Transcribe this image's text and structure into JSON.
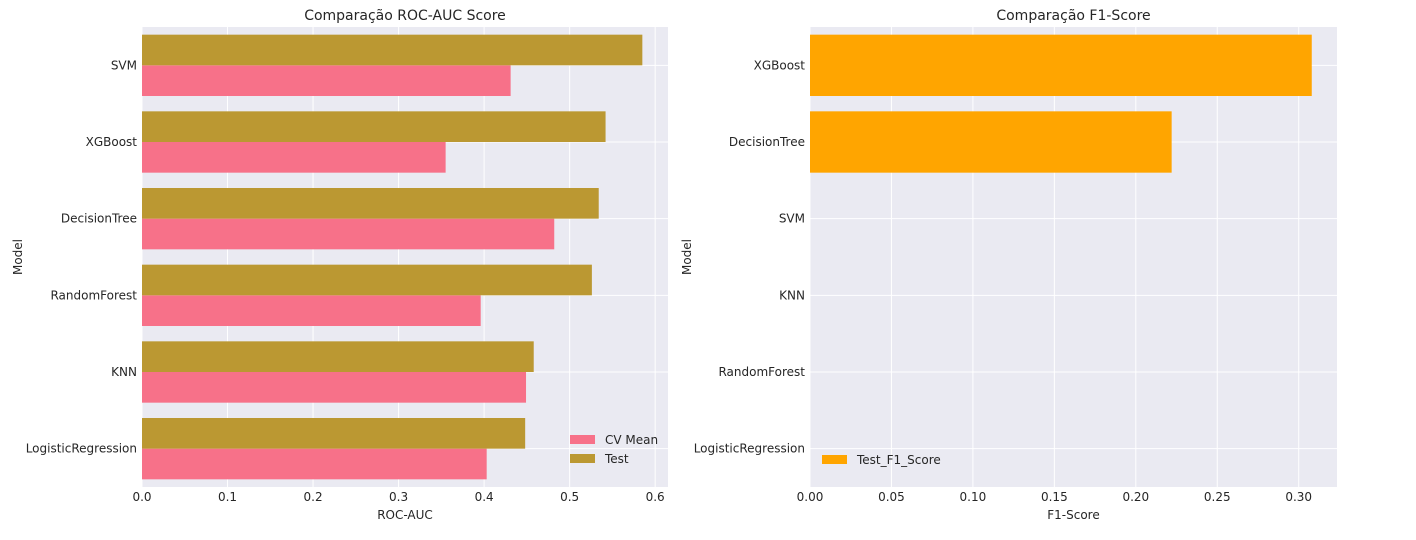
{
  "chart_data": [
    {
      "type": "bar",
      "orientation": "horizontal",
      "title": "Comparação ROC-AUC Score",
      "xlabel": "ROC-AUC",
      "ylabel": "Model",
      "categories": [
        "LogisticRegression",
        "KNN",
        "RandomForest",
        "DecisionTree",
        "XGBoost",
        "SVM"
      ],
      "series": [
        {
          "name": "CV Mean",
          "color": "#f77189",
          "values": [
            0.403,
            0.449,
            0.396,
            0.482,
            0.355,
            0.431
          ]
        },
        {
          "name": "Test",
          "color": "#bb9832",
          "values": [
            0.448,
            0.458,
            0.526,
            0.534,
            0.542,
            0.585
          ]
        }
      ],
      "xlim": [
        0,
        0.615
      ],
      "xticks": [
        "0.0",
        "0.1",
        "0.2",
        "0.3",
        "0.4",
        "0.5",
        "0.6"
      ],
      "xtick_values": [
        0,
        0.1,
        0.2,
        0.3,
        0.4,
        0.5,
        0.6
      ],
      "grid": true,
      "legend": "lower right"
    },
    {
      "type": "bar",
      "orientation": "horizontal",
      "title": "Comparação F1-Score",
      "xlabel": "F1-Score",
      "ylabel": "Model",
      "categories": [
        "LogisticRegression",
        "RandomForest",
        "KNN",
        "SVM",
        "DecisionTree",
        "XGBoost"
      ],
      "series": [
        {
          "name": "Test_F1_Score",
          "color": "#ffa500",
          "values": [
            0,
            0,
            0,
            0,
            0.222,
            0.308
          ]
        }
      ],
      "xlim": [
        0,
        0.3235
      ],
      "xticks": [
        "0.00",
        "0.05",
        "0.10",
        "0.15",
        "0.20",
        "0.25",
        "0.30"
      ],
      "xtick_values": [
        0,
        0.05,
        0.1,
        0.15,
        0.2,
        0.25,
        0.3
      ],
      "grid": true,
      "legend": "lower left"
    }
  ]
}
